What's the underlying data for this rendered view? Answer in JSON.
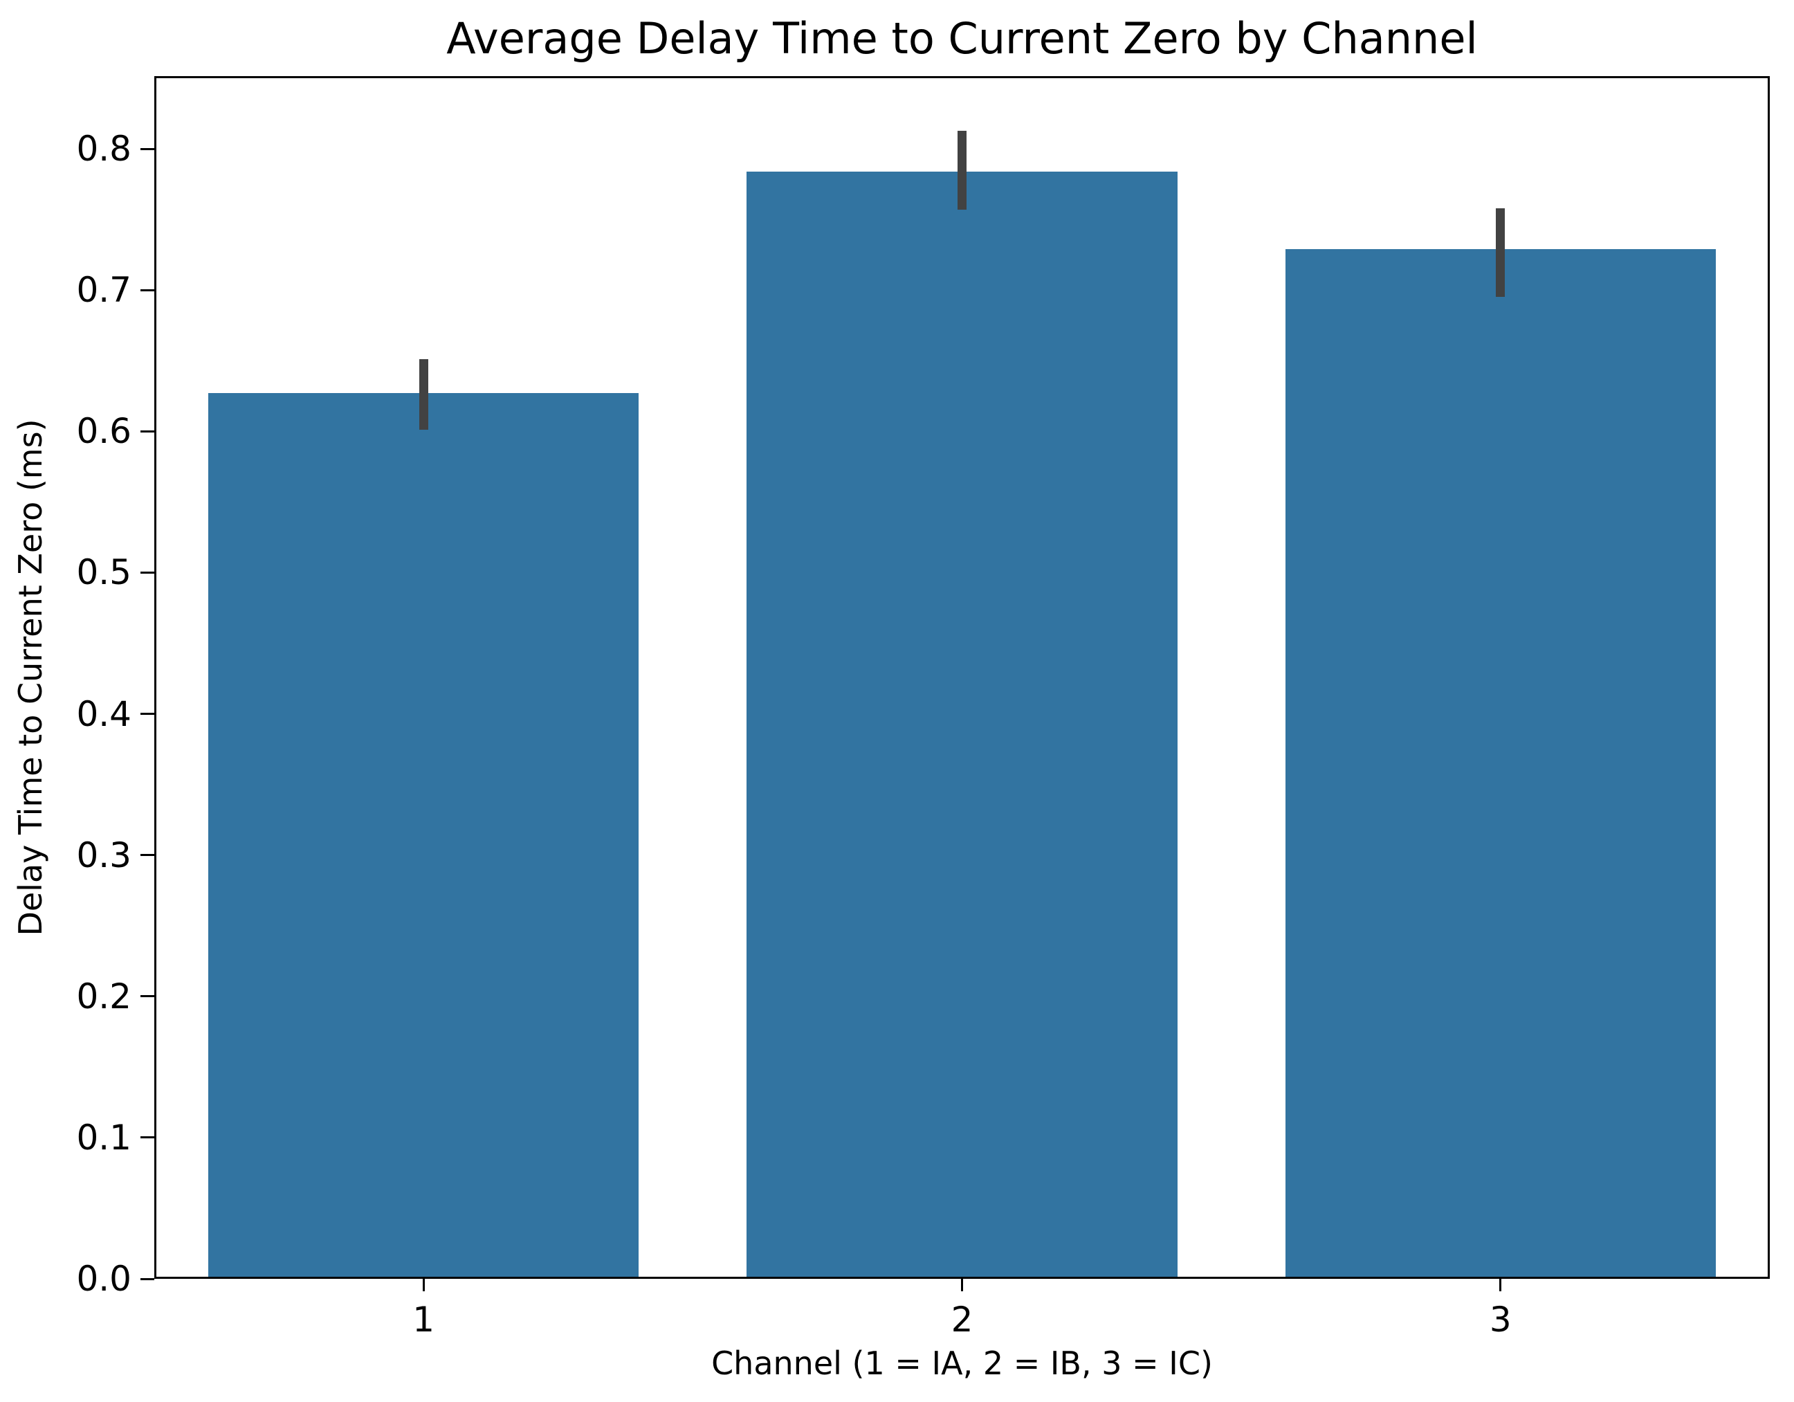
{
  "figure": {
    "background": "#ffffff"
  },
  "chart_data": {
    "type": "bar",
    "title": "Average Delay Time to Current Zero by Channel",
    "xlabel": "Channel (1 = IA, 2 = IB, 3 = IC)",
    "ylabel": "Delay Time to Current Zero (ms)",
    "categories": [
      "1",
      "2",
      "3"
    ],
    "values": [
      0.627,
      0.784,
      0.729
    ],
    "error_bars": {
      "low": [
        0.601,
        0.757,
        0.695
      ],
      "high": [
        0.651,
        0.813,
        0.758
      ]
    },
    "yticks": [
      0.0,
      0.1,
      0.2,
      0.3,
      0.4,
      0.5,
      0.6,
      0.7,
      0.8
    ],
    "ylim": [
      0,
      0.8515
    ],
    "bar_width_fraction": 0.8,
    "bar_color": "#3274a1",
    "error_bar_color": "#424242",
    "axis_color": "#000000",
    "grid": false,
    "legend": null
  }
}
